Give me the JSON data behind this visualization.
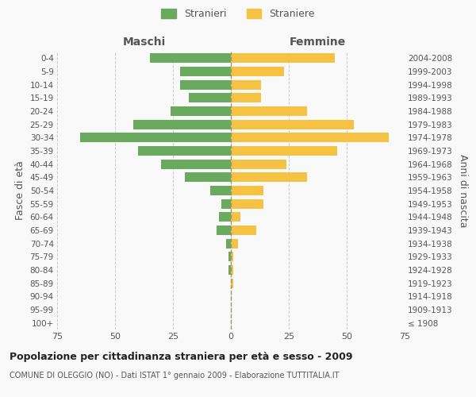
{
  "age_groups": [
    "100+",
    "95-99",
    "90-94",
    "85-89",
    "80-84",
    "75-79",
    "70-74",
    "65-69",
    "60-64",
    "55-59",
    "50-54",
    "45-49",
    "40-44",
    "35-39",
    "30-34",
    "25-29",
    "20-24",
    "15-19",
    "10-14",
    "5-9",
    "0-4"
  ],
  "birth_years": [
    "≤ 1908",
    "1909-1913",
    "1914-1918",
    "1919-1923",
    "1924-1928",
    "1929-1933",
    "1934-1938",
    "1939-1943",
    "1944-1948",
    "1949-1953",
    "1954-1958",
    "1959-1963",
    "1964-1968",
    "1969-1973",
    "1974-1978",
    "1979-1983",
    "1984-1988",
    "1989-1993",
    "1994-1998",
    "1999-2003",
    "2004-2008"
  ],
  "maschi": [
    0,
    0,
    0,
    0,
    1,
    1,
    2,
    6,
    5,
    4,
    9,
    20,
    30,
    40,
    65,
    42,
    26,
    18,
    22,
    22,
    35
  ],
  "femmine": [
    0,
    0,
    0,
    1,
    1,
    1,
    3,
    11,
    4,
    14,
    14,
    33,
    24,
    46,
    68,
    53,
    33,
    13,
    13,
    23,
    45
  ],
  "color_maschi": "#6aaa5e",
  "color_femmine": "#f5c244",
  "background_color": "#f9f9f9",
  "title": "Popolazione per cittadinanza straniera per età e sesso - 2009",
  "subtitle": "COMUNE DI OLEGGIO (NO) - Dati ISTAT 1° gennaio 2009 - Elaborazione TUTTITALIA.IT",
  "xlabel_maschi": "Maschi",
  "xlabel_femmine": "Femmine",
  "ylabel_left": "Fasce di età",
  "ylabel_right": "Anni di nascita",
  "legend_maschi": "Stranieri",
  "legend_femmine": "Straniere",
  "xlim": 75,
  "grid_color": "#cccccc",
  "text_color": "#555555",
  "center_line_color": "#999966"
}
